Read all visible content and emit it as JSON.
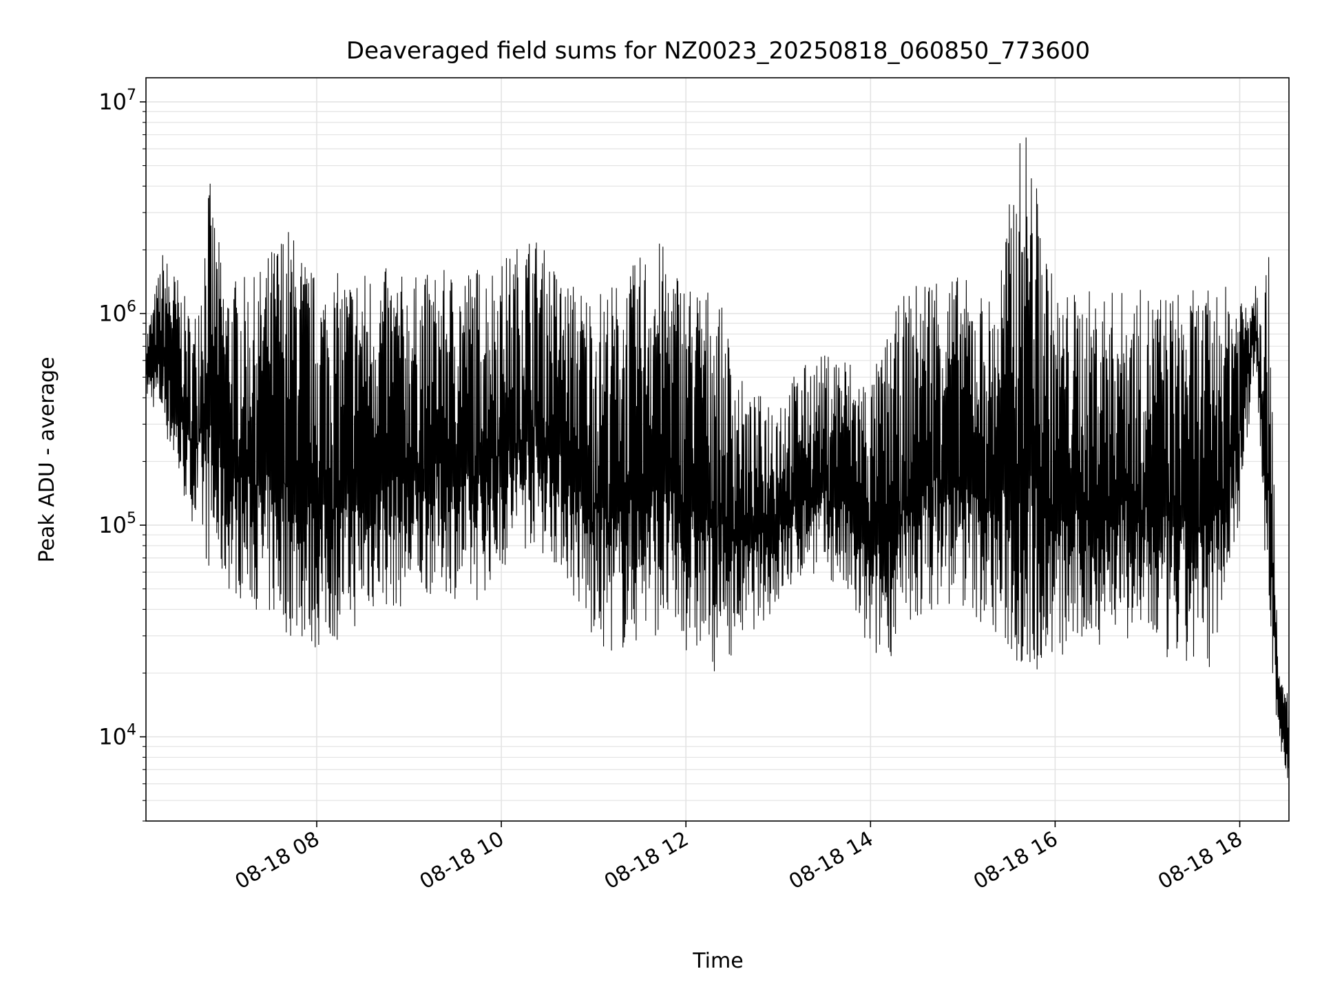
{
  "chart_data": {
    "type": "line",
    "title": "Deaveraged field sums for NZ0023_20250818_060850_773600",
    "xlabel": "Time",
    "ylabel": "Peak ADU - average",
    "y_scale": "log",
    "ylim": [
      4000,
      13000000
    ],
    "xlim": [
      "2025-08-18 06:09",
      "2025-08-18 18:32"
    ],
    "x_ticks": [
      {
        "value": "2025-08-18 08:00",
        "label": "08-18 08"
      },
      {
        "value": "2025-08-18 10:00",
        "label": "08-18 10"
      },
      {
        "value": "2025-08-18 12:00",
        "label": "08-18 12"
      },
      {
        "value": "2025-08-18 14:00",
        "label": "08-18 14"
      },
      {
        "value": "2025-08-18 16:00",
        "label": "08-18 16"
      },
      {
        "value": "2025-08-18 18:00",
        "label": "08-18 18"
      }
    ],
    "y_ticks": [
      {
        "value": 10000,
        "base": "10",
        "exp": "4"
      },
      {
        "value": 100000,
        "base": "10",
        "exp": "5"
      },
      {
        "value": 1000000,
        "base": "10",
        "exp": "6"
      },
      {
        "value": 10000000,
        "base": "10",
        "exp": "7"
      }
    ],
    "grid": true,
    "line_color": "#000000",
    "series": [
      {
        "x": [
          "2025-08-18 06:09",
          "2025-08-18 06:20",
          "2025-08-18 06:30",
          "2025-08-18 06:40",
          "2025-08-18 06:50",
          "2025-08-18 07:00",
          "2025-08-18 07:20",
          "2025-08-18 07:40",
          "2025-08-18 08:00",
          "2025-08-18 08:20",
          "2025-08-18 08:40",
          "2025-08-18 09:00",
          "2025-08-18 09:20",
          "2025-08-18 09:40",
          "2025-08-18 10:00",
          "2025-08-18 10:20",
          "2025-08-18 10:40",
          "2025-08-18 11:00",
          "2025-08-18 11:20",
          "2025-08-18 11:40",
          "2025-08-18 12:00",
          "2025-08-18 12:20",
          "2025-08-18 12:40",
          "2025-08-18 13:00",
          "2025-08-18 13:20",
          "2025-08-18 13:40",
          "2025-08-18 14:00",
          "2025-08-18 14:20",
          "2025-08-18 14:40",
          "2025-08-18 15:00",
          "2025-08-18 15:20",
          "2025-08-18 15:40",
          "2025-08-18 16:00",
          "2025-08-18 16:20",
          "2025-08-18 16:40",
          "2025-08-18 17:00",
          "2025-08-18 17:20",
          "2025-08-18 17:40",
          "2025-08-18 18:00",
          "2025-08-18 18:10",
          "2025-08-18 18:20",
          "2025-08-18 18:25",
          "2025-08-18 18:32"
        ],
        "high": [
          800000,
          2000000,
          1500000,
          900000,
          4500000,
          1500000,
          1500000,
          2800000,
          1500000,
          1600000,
          1700000,
          1500000,
          1600000,
          1700000,
          1800000,
          2500000,
          1500000,
          1300000,
          1500000,
          2400000,
          1500000,
          1300000,
          400000,
          450000,
          600000,
          700000,
          500000,
          1200000,
          1700000,
          1500000,
          1200000,
          9000000,
          1300000,
          1300000,
          1300000,
          1300000,
          1300000,
          1300000,
          1400000,
          1500000,
          1900000,
          20000,
          17000
        ],
        "low": [
          400000,
          300000,
          150000,
          100000,
          60000,
          50000,
          40000,
          30000,
          25000,
          30000,
          40000,
          40000,
          50000,
          40000,
          60000,
          80000,
          60000,
          25000,
          25000,
          30000,
          25000,
          20000,
          30000,
          40000,
          60000,
          50000,
          22000,
          25000,
          40000,
          40000,
          30000,
          18000,
          22000,
          25000,
          30000,
          25000,
          20000,
          20000,
          100000,
          600000,
          20000,
          10000,
          5500
        ]
      }
    ]
  }
}
